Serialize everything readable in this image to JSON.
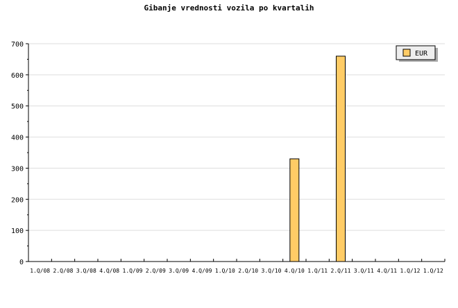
{
  "chart_data": {
    "type": "bar",
    "title": "Gibanje vrednosti vozila po kvartalih",
    "categories": [
      "1.Q/08",
      "2.Q/08",
      "3.Q/08",
      "4.Q/08",
      "1.Q/09",
      "2.Q/09",
      "3.Q/09",
      "4.Q/09",
      "1.Q/10",
      "2.Q/10",
      "3.Q/10",
      "4.Q/10",
      "1.Q/11",
      "2.Q/11",
      "3.Q/11",
      "4.Q/11",
      "1.Q/12",
      "1.Q/12"
    ],
    "series": [
      {
        "name": "EUR",
        "values": [
          0,
          0,
          0,
          0,
          0,
          0,
          0,
          0,
          0,
          0,
          0,
          330,
          0,
          660,
          0,
          0,
          0,
          0
        ],
        "color": "#ffcc66"
      }
    ],
    "ylim": [
      0,
      700
    ],
    "yticks": [
      0,
      100,
      200,
      300,
      400,
      500,
      600,
      700
    ],
    "grid": true,
    "legend": "top-right"
  }
}
